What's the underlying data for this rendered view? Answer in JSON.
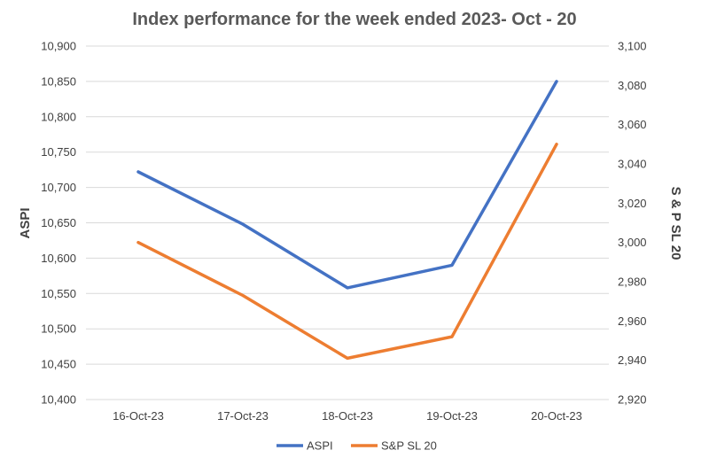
{
  "chart_data": {
    "type": "line",
    "title": "Index performance for the week ended 2023- Oct - 20",
    "categories": [
      "16-Oct-23",
      "17-Oct-23",
      "18-Oct-23",
      "19-Oct-23",
      "20-Oct-23"
    ],
    "series": [
      {
        "name": "ASPI",
        "axis": "left",
        "color": "#4472C4",
        "values": [
          10722,
          10648,
          10558,
          10590,
          10850
        ]
      },
      {
        "name": "S&P SL 20",
        "axis": "right",
        "color": "#ED7D31",
        "values": [
          3000,
          2973,
          2941,
          2952,
          3050
        ]
      }
    ],
    "y_left": {
      "label": "ASPI",
      "range": [
        10400,
        10900
      ],
      "ticks": [
        "10,400",
        "10,450",
        "10,500",
        "10,550",
        "10,600",
        "10,650",
        "10,700",
        "10,750",
        "10,800",
        "10,850",
        "10,900"
      ]
    },
    "y_right": {
      "label": "S & P SL 20",
      "range": [
        2920,
        3100
      ],
      "ticks": [
        "2,920",
        "2,940",
        "2,960",
        "2,980",
        "3,000",
        "3,020",
        "3,040",
        "3,060",
        "3,080",
        "3,100"
      ]
    },
    "grid": true,
    "legend_position": "bottom"
  }
}
